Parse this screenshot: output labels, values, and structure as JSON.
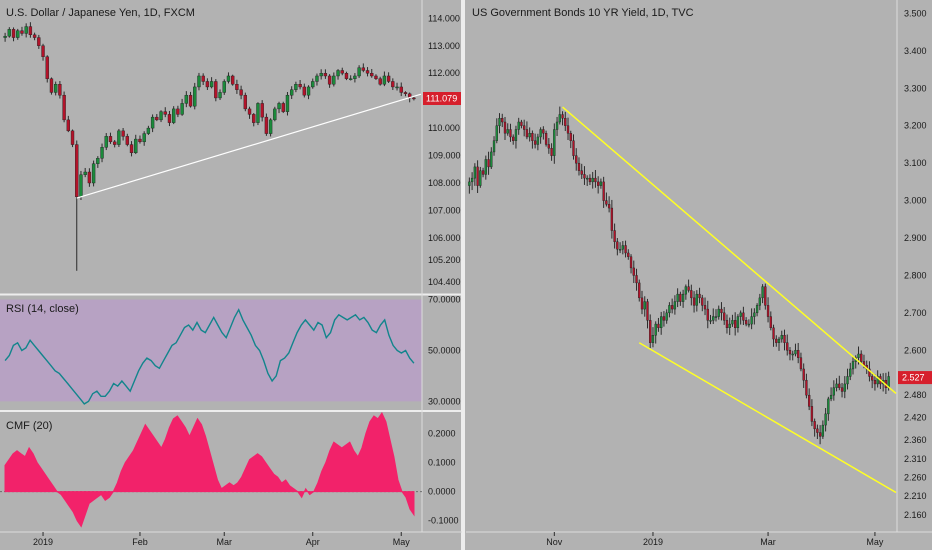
{
  "colors": {
    "background": "#b2b2b2",
    "divider": "#ededed",
    "up": "#1b8a3b",
    "down": "#b2132a",
    "wick": "#2b2b2b",
    "trendline_left": "#ffffff",
    "channel": "#ffff24",
    "price_tag": "#d61f2c",
    "rsi_band": "#b7a0c4",
    "rsi_line": "#12858c",
    "cmf_fill": "#f2226a",
    "zero_line": "#6e6e6e"
  },
  "chart_data": [
    {
      "id": "usdjpy",
      "type": "candlestick",
      "title": "U.S. Dollar / Japanese Yen, 1D, FXCM",
      "ylim": [
        104.1,
        114.45
      ],
      "y_ticks": [
        "114.000",
        "113.000",
        "112.000",
        "111.000",
        "110.000",
        "109.000",
        "108.000",
        "107.000",
        "106.000",
        "105.200",
        "104.400"
      ],
      "y_tick_values": [
        114.0,
        113.0,
        112.0,
        111.0,
        110.0,
        109.0,
        108.0,
        107.0,
        106.0,
        105.2,
        104.4
      ],
      "x_ticks": [
        "2019",
        "Feb",
        "Mar",
        "Apr",
        "May"
      ],
      "x_tick_index": [
        9,
        32,
        52,
        73,
        94
      ],
      "last_price_label": "111.079",
      "last_price": 111.079,
      "trendline": {
        "from": {
          "index": 17,
          "value": 107.45
        },
        "to": {
          "index": 99,
          "value": 111.25
        }
      },
      "closes": [
        113.35,
        113.6,
        113.3,
        113.55,
        113.45,
        113.7,
        113.4,
        113.3,
        113.0,
        112.6,
        111.8,
        111.3,
        111.6,
        111.2,
        110.3,
        109.9,
        109.4,
        107.5,
        108.3,
        108.4,
        108.0,
        108.7,
        108.9,
        109.3,
        109.7,
        109.5,
        109.4,
        109.9,
        109.7,
        109.4,
        109.1,
        109.6,
        109.5,
        109.8,
        110.0,
        110.4,
        110.3,
        110.6,
        110.5,
        110.2,
        110.7,
        110.5,
        110.9,
        111.2,
        110.8,
        111.5,
        111.9,
        111.7,
        111.5,
        111.7,
        111.1,
        111.3,
        111.7,
        111.9,
        111.6,
        111.4,
        111.2,
        110.7,
        110.5,
        110.2,
        110.9,
        110.4,
        109.8,
        110.3,
        110.7,
        110.9,
        110.6,
        111.2,
        111.4,
        111.6,
        111.5,
        111.2,
        111.5,
        111.7,
        111.9,
        112.0,
        111.9,
        111.6,
        111.9,
        112.1,
        112.0,
        111.8,
        111.8,
        111.9,
        112.2,
        112.1,
        112.0,
        111.9,
        111.8,
        111.6,
        111.9,
        111.7,
        111.5,
        111.5,
        111.3,
        111.25,
        111.1,
        111.08
      ]
    },
    {
      "id": "rsi",
      "type": "line",
      "title": "RSI (14, close)",
      "ylim": [
        27,
        71
      ],
      "band": [
        30,
        70
      ],
      "y_ticks": [
        "70.0000",
        "50.0000",
        "30.0000"
      ],
      "y_tick_values": [
        70,
        50,
        30
      ],
      "values": [
        46,
        48,
        52,
        53,
        50,
        51,
        54,
        52,
        50,
        48,
        46,
        44,
        42,
        41,
        39,
        37,
        35,
        33,
        31,
        29,
        30,
        33,
        34,
        32,
        32,
        34,
        37,
        36,
        38,
        36,
        34,
        38,
        42,
        45,
        47,
        46,
        44,
        43,
        46,
        49,
        52,
        53,
        56,
        59,
        60,
        58,
        61,
        58,
        57,
        60,
        63,
        60,
        57,
        55,
        59,
        63,
        66,
        62,
        59,
        56,
        52,
        50,
        46,
        41,
        38,
        40,
        46,
        47,
        49,
        53,
        57,
        60,
        62,
        60,
        58,
        61,
        60,
        55,
        57,
        62,
        64,
        63,
        62,
        63,
        64,
        62,
        63,
        61,
        58,
        57,
        60,
        62,
        56,
        52,
        50,
        49,
        50,
        47,
        45
      ]
    },
    {
      "id": "cmf",
      "type": "area",
      "title": "CMF (20)",
      "ylim": [
        -0.125,
        0.27
      ],
      "y_ticks": [
        "0.2000",
        "0.1000",
        "0.0000",
        "-0.1000"
      ],
      "y_tick_values": [
        0.2,
        0.1,
        0.0,
        -0.1
      ],
      "values": [
        0.09,
        0.11,
        0.13,
        0.14,
        0.13,
        0.12,
        0.15,
        0.13,
        0.1,
        0.08,
        0.06,
        0.04,
        0.02,
        0.0,
        -0.01,
        -0.03,
        -0.05,
        -0.07,
        -0.1,
        -0.12,
        -0.08,
        -0.04,
        -0.03,
        -0.02,
        -0.01,
        -0.03,
        -0.02,
        0.0,
        0.03,
        0.07,
        0.1,
        0.12,
        0.14,
        0.17,
        0.2,
        0.23,
        0.21,
        0.19,
        0.17,
        0.15,
        0.18,
        0.22,
        0.25,
        0.26,
        0.24,
        0.22,
        0.19,
        0.22,
        0.25,
        0.23,
        0.19,
        0.14,
        0.09,
        0.04,
        0.01,
        0.02,
        0.03,
        0.02,
        0.03,
        0.05,
        0.08,
        0.11,
        0.12,
        0.13,
        0.12,
        0.1,
        0.08,
        0.06,
        0.05,
        0.03,
        0.04,
        0.02,
        0.01,
        0.0,
        -0.02,
        0.01,
        -0.01,
        0.0,
        0.03,
        0.07,
        0.1,
        0.14,
        0.17,
        0.16,
        0.15,
        0.16,
        0.17,
        0.14,
        0.12,
        0.15,
        0.2,
        0.24,
        0.26,
        0.25,
        0.27,
        0.24,
        0.18,
        0.12,
        0.04,
        0.0,
        -0.02,
        -0.06,
        -0.08
      ]
    },
    {
      "id": "us10y",
      "type": "candlestick",
      "title": "US Government Bonds 10 YR Yield, 1D, TVC",
      "ylim": [
        2.125,
        3.52
      ],
      "y_ticks": [
        "3.500",
        "3.400",
        "3.300",
        "3.200",
        "3.100",
        "3.000",
        "2.900",
        "2.800",
        "2.700",
        "2.600",
        "2.527",
        "2.480",
        "2.420",
        "2.360",
        "2.310",
        "2.260",
        "2.210",
        "2.160"
      ],
      "y_tick_values": [
        3.5,
        3.4,
        3.3,
        3.2,
        3.1,
        3.0,
        2.9,
        2.8,
        2.7,
        2.6,
        2.527,
        2.48,
        2.42,
        2.36,
        2.31,
        2.26,
        2.21,
        2.16
      ],
      "x_ticks": [
        "Nov",
        "2019",
        "Mar",
        "May"
      ],
      "x_tick_index": [
        31,
        67,
        109,
        148
      ],
      "last_price_label": "2.527",
      "last_price": 2.527,
      "channel_upper": {
        "from": {
          "index": 34,
          "value": 3.25
        },
        "to": {
          "index": 158,
          "value": 2.47
        }
      },
      "channel_lower": {
        "from": {
          "index": 62,
          "value": 2.62
        },
        "to": {
          "index": 158,
          "value": 2.21
        }
      },
      "closes": [
        3.05,
        3.06,
        3.09,
        3.04,
        3.08,
        3.07,
        3.11,
        3.09,
        3.13,
        3.16,
        3.2,
        3.22,
        3.21,
        3.18,
        3.19,
        3.17,
        3.16,
        3.19,
        3.21,
        3.2,
        3.19,
        3.17,
        3.18,
        3.16,
        3.15,
        3.17,
        3.19,
        3.18,
        3.15,
        3.14,
        3.12,
        3.19,
        3.21,
        3.23,
        3.22,
        3.2,
        3.18,
        3.16,
        3.12,
        3.1,
        3.08,
        3.07,
        3.06,
        3.06,
        3.05,
        3.06,
        3.05,
        3.04,
        3.05,
        3.0,
        2.99,
        2.98,
        2.92,
        2.89,
        2.87,
        2.87,
        2.88,
        2.86,
        2.85,
        2.82,
        2.8,
        2.78,
        2.74,
        2.71,
        2.73,
        2.68,
        2.62,
        2.64,
        2.67,
        2.66,
        2.69,
        2.68,
        2.7,
        2.72,
        2.71,
        2.73,
        2.75,
        2.73,
        2.75,
        2.77,
        2.76,
        2.74,
        2.72,
        2.75,
        2.74,
        2.72,
        2.71,
        2.68,
        2.68,
        2.69,
        2.69,
        2.71,
        2.7,
        2.68,
        2.66,
        2.67,
        2.68,
        2.66,
        2.69,
        2.7,
        2.68,
        2.67,
        2.67,
        2.69,
        2.7,
        2.72,
        2.74,
        2.77,
        2.72,
        2.69,
        2.66,
        2.63,
        2.62,
        2.63,
        2.64,
        2.62,
        2.6,
        2.59,
        2.59,
        2.6,
        2.58,
        2.55,
        2.52,
        2.48,
        2.45,
        2.41,
        2.39,
        2.38,
        2.37,
        2.4,
        2.43,
        2.47,
        2.48,
        2.5,
        2.51,
        2.5,
        2.49,
        2.51,
        2.53,
        2.55,
        2.57,
        2.58,
        2.59,
        2.57,
        2.56,
        2.55,
        2.53,
        2.52,
        2.51,
        2.53,
        2.51,
        2.52,
        2.5,
        2.53
      ]
    }
  ]
}
